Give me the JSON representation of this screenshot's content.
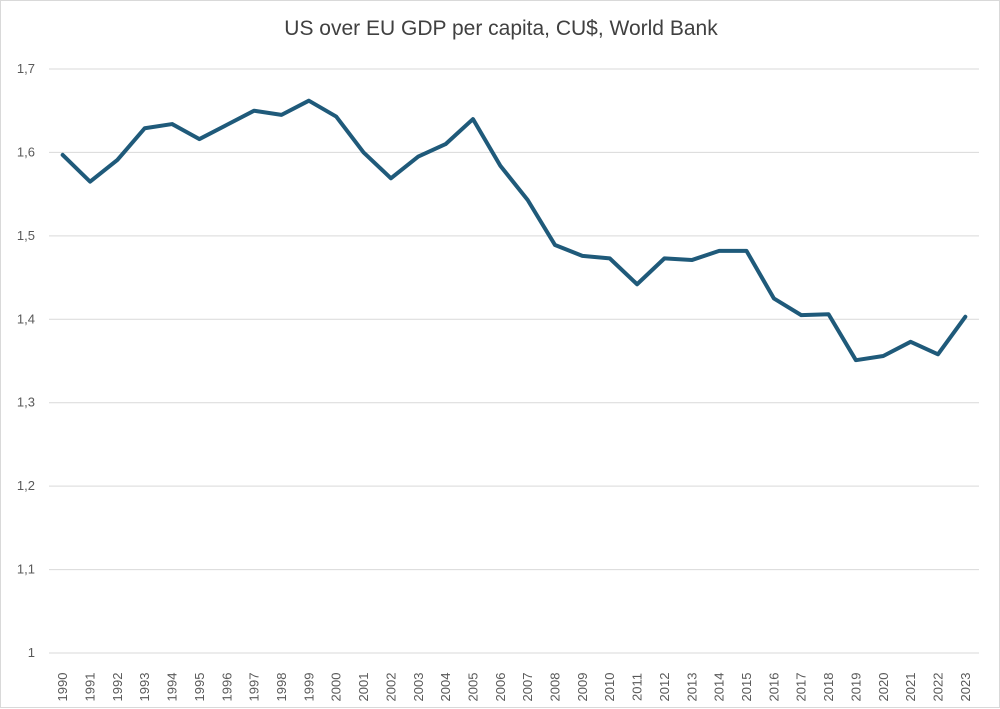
{
  "chart_data": {
    "type": "line",
    "title": "US  over EU GDP per capita, CU$, World Bank",
    "xlabel": "",
    "ylabel": "",
    "ylim": [
      1,
      1.7
    ],
    "y_ticks": [
      "1",
      "1,1",
      "1,2",
      "1,3",
      "1,4",
      "1,5",
      "1,6",
      "1,7"
    ],
    "y_tick_values": [
      1,
      1.1,
      1.2,
      1.3,
      1.4,
      1.5,
      1.6,
      1.7
    ],
    "grid": true,
    "legend": "none",
    "categories": [
      "1990",
      "1991",
      "1992",
      "1993",
      "1994",
      "1995",
      "1996",
      "1997",
      "1998",
      "1999",
      "2000",
      "2001",
      "2002",
      "2003",
      "2004",
      "2005",
      "2006",
      "2007",
      "2008",
      "2009",
      "2010",
      "2011",
      "2012",
      "2013",
      "2014",
      "2015",
      "2016",
      "2017",
      "2018",
      "2019",
      "2020",
      "2021",
      "2022",
      "2023"
    ],
    "series": [
      {
        "name": "US over EU GDP per capita",
        "color": "#1f5a7a",
        "values": [
          1.597,
          1.565,
          1.591,
          1.629,
          1.634,
          1.616,
          1.633,
          1.65,
          1.645,
          1.662,
          1.643,
          1.6,
          1.569,
          1.595,
          1.61,
          1.64,
          1.584,
          1.543,
          1.489,
          1.476,
          1.473,
          1.442,
          1.473,
          1.471,
          1.482,
          1.482,
          1.425,
          1.405,
          1.406,
          1.351,
          1.356,
          1.373,
          1.358,
          1.403
        ]
      }
    ]
  }
}
